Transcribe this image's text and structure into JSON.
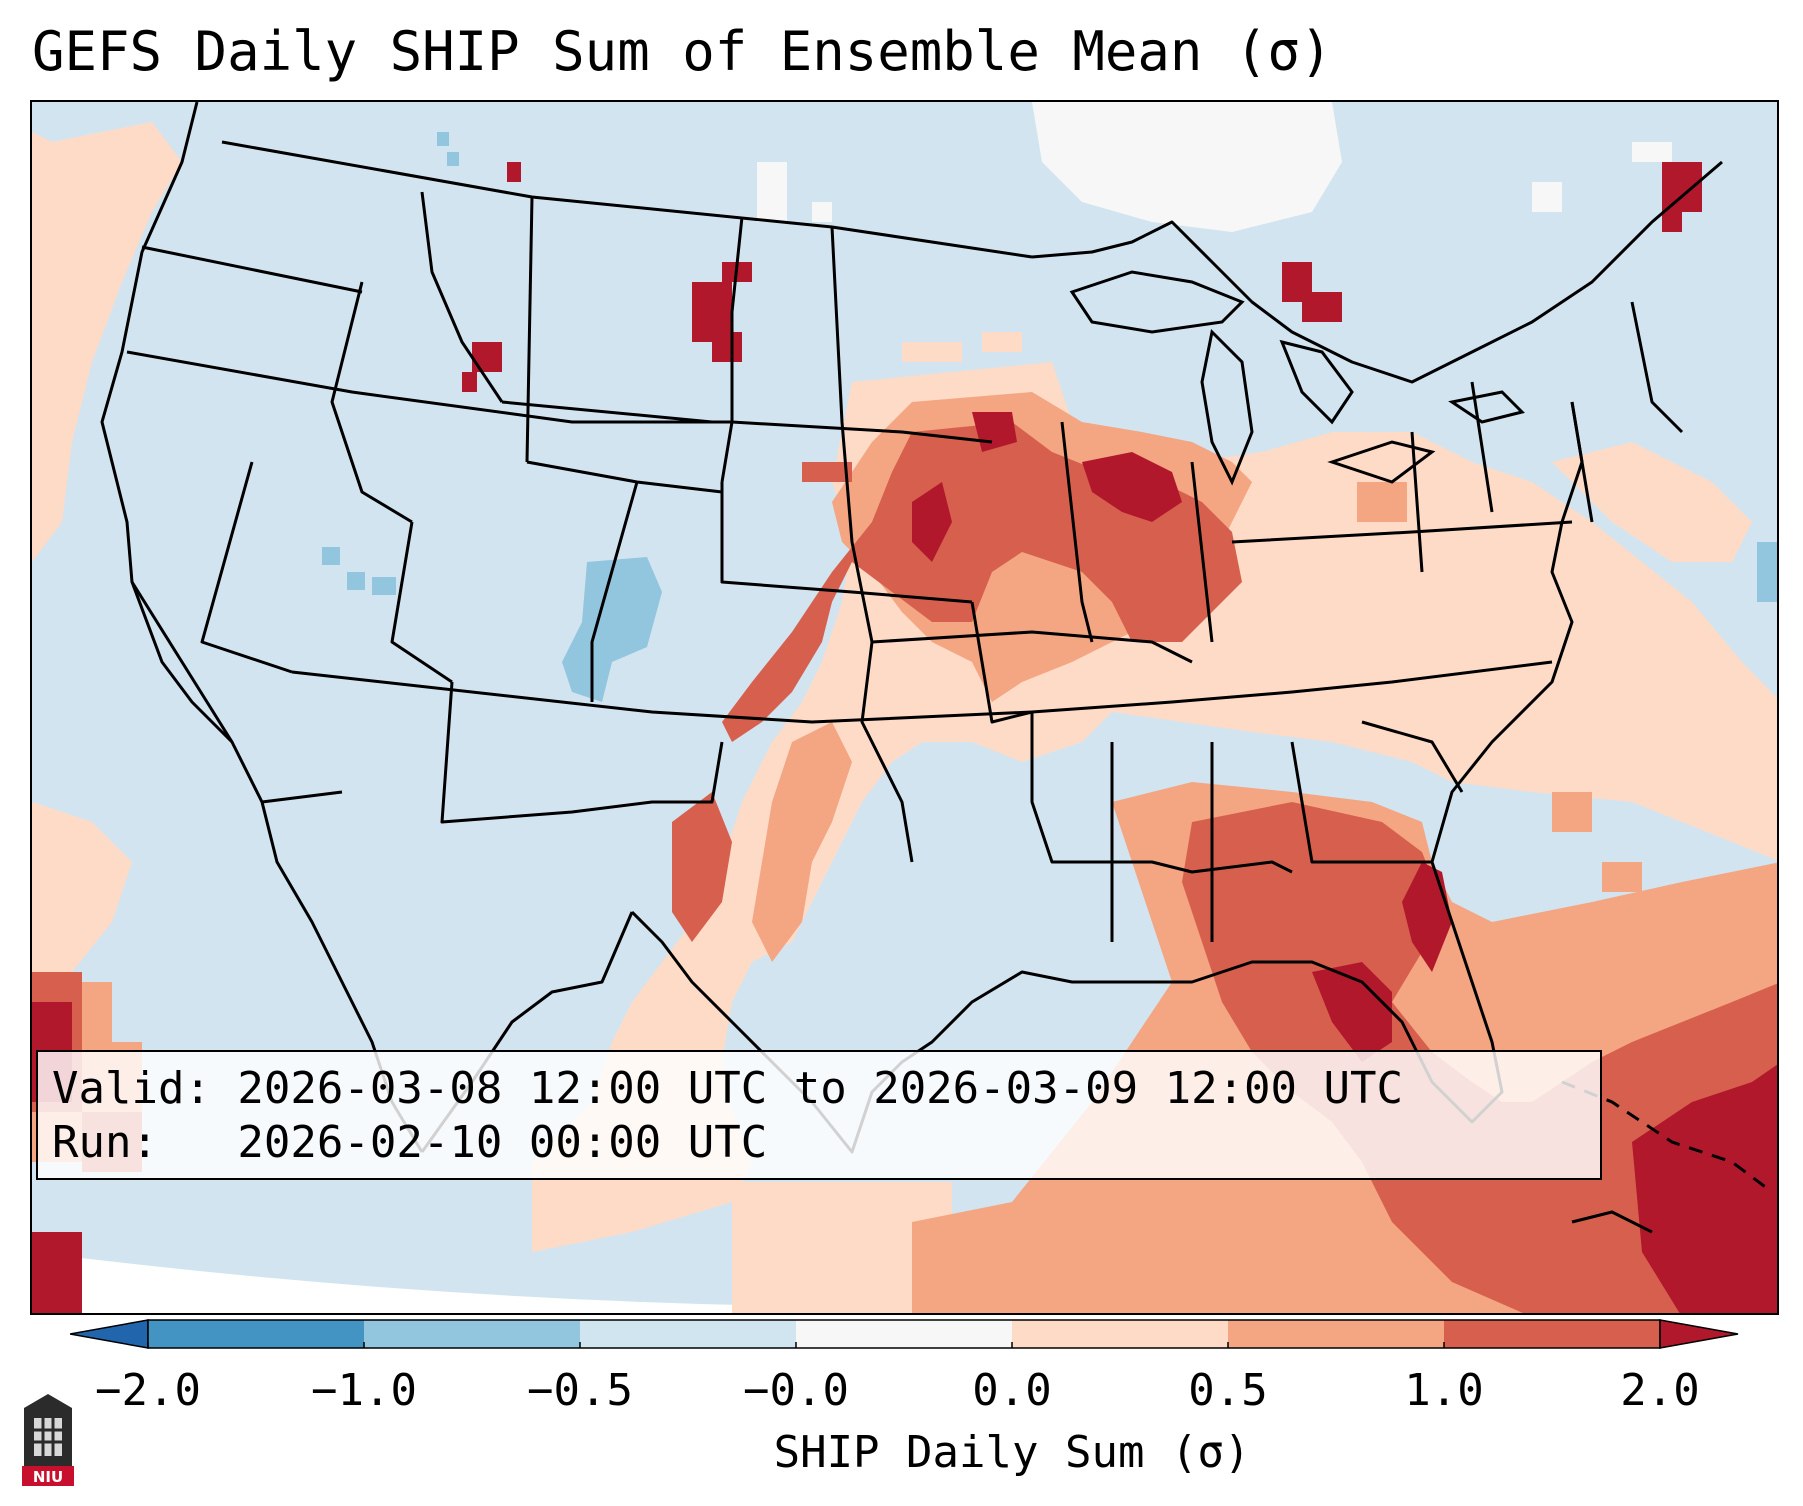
{
  "title": "GEFS Daily SHIP Sum of Ensemble Mean (σ)",
  "info": {
    "valid_line": "Valid: 2026-03-08 12:00 UTC to 2026-03-09 12:00 UTC",
    "run_line": "Run:   2026-02-10 00:00 UTC"
  },
  "colorbar": {
    "label": "SHIP Daily Sum (σ)",
    "ticks": [
      "−2.0",
      "−1.0",
      "−0.5",
      "−0.0",
      "0.0",
      "0.5",
      "1.0",
      "2.0"
    ],
    "bins": [
      {
        "from": "-2.0",
        "to": "-1.0",
        "color": "#4393c3"
      },
      {
        "from": "-1.0",
        "to": "-0.5",
        "color": "#92c5de"
      },
      {
        "from": "-0.5",
        "to": "-0.0",
        "color": "#d1e5f0"
      },
      {
        "from": "-0.0",
        "to": "0.0",
        "color": "#f7f7f7"
      },
      {
        "from": "0.0",
        "to": "0.5",
        "color": "#fddbc7"
      },
      {
        "from": "0.5",
        "to": "1.0",
        "color": "#f4a582"
      },
      {
        "from": "1.0",
        "to": "2.0",
        "color": "#d6604d"
      }
    ],
    "under_color": "#2166ac",
    "over_color": "#b2182b",
    "extend": "both"
  },
  "logo": {
    "text": "NIU"
  },
  "map": {
    "region": "Contiguous United States",
    "projection": "Lambert conformal"
  }
}
